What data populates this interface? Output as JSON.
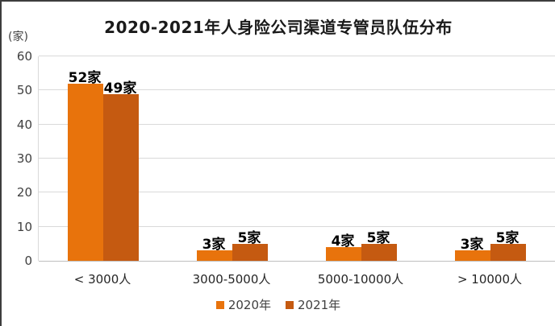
{
  "chart_data": {
    "type": "bar",
    "title": "2020-2021年人身险公司渠道专管员队伍分布",
    "y_unit": "(家)",
    "categories": [
      "< 3000人",
      "3000-5000人",
      "5000-10000人",
      "> 10000人"
    ],
    "series": [
      {
        "name": "2020年",
        "color": "#E8730C",
        "values": [
          52,
          3,
          4,
          3
        ],
        "labels": [
          "52家",
          "3家",
          "4家",
          "3家"
        ]
      },
      {
        "name": "2021年",
        "color": "#C55A11",
        "values": [
          49,
          5,
          5,
          5
        ],
        "labels": [
          "49家",
          "5家",
          "5家",
          "5家"
        ]
      }
    ],
    "ylim": [
      0,
      60
    ],
    "yticks": [
      0,
      10,
      20,
      30,
      40,
      50,
      60
    ],
    "grid": true,
    "legend_position": "bottom",
    "colors": {
      "gridline": "#d9d9d9",
      "axis_line": "#bfbfbf",
      "title_text": "#1a1a1a",
      "tick_text": "#404040",
      "category_text": "#262626",
      "value_label_text": "#000000"
    }
  }
}
